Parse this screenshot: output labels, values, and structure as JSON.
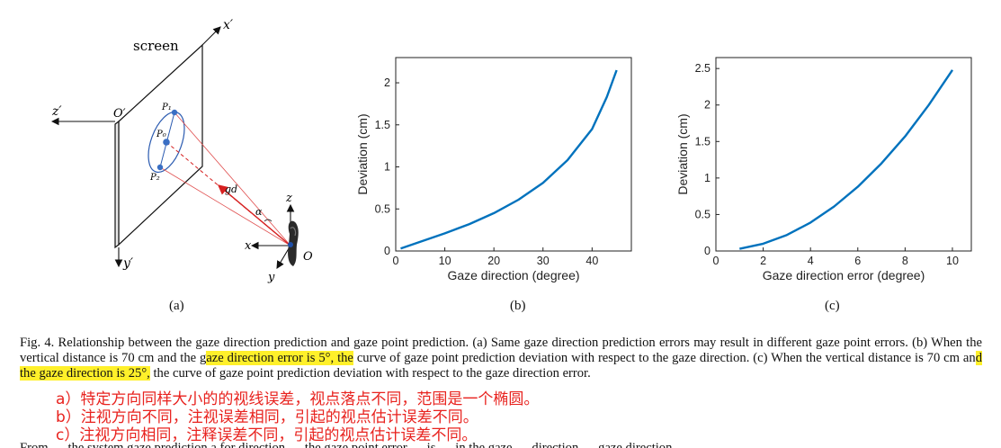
{
  "diagram": {
    "screen_label": "screen",
    "axes": {
      "x_prime": "x′",
      "y_prime": "y′",
      "z_prime": "z′",
      "o_prime": "O′",
      "x": "x",
      "y": "y",
      "z": "z",
      "o": "O"
    },
    "points": {
      "p1": "P₁",
      "p0": "P₀",
      "p2": "P₂"
    },
    "vector_label": "gd",
    "angle_label": "α",
    "sublabel": "(a)"
  },
  "chart_data": [
    {
      "type": "line",
      "xlabel": "Gaze direction (degree)",
      "ylabel": "Deviation (cm)",
      "xlim": [
        0,
        48
      ],
      "ylim": [
        0,
        2.3
      ],
      "xticks": [
        0,
        10,
        20,
        30,
        40
      ],
      "yticks": [
        0,
        0.5,
        1,
        1.5,
        2
      ],
      "series": [
        {
          "color": "#0072bd",
          "x": [
            1,
            5,
            10,
            15,
            20,
            25,
            30,
            35,
            40,
            43,
            45
          ],
          "y": [
            0.03,
            0.11,
            0.21,
            0.32,
            0.45,
            0.61,
            0.81,
            1.08,
            1.45,
            1.83,
            2.15
          ]
        }
      ],
      "grid": false,
      "sublabel": "(b)"
    },
    {
      "type": "line",
      "xlabel": "Gaze direction error (degree)",
      "ylabel": "Deviation (cm)",
      "xlim": [
        0,
        10.8
      ],
      "ylim": [
        0,
        2.65
      ],
      "xticks": [
        0,
        2,
        4,
        6,
        8,
        10
      ],
      "yticks": [
        0,
        0.5,
        1,
        1.5,
        2,
        2.5
      ],
      "series": [
        {
          "color": "#0072bd",
          "x": [
            1,
            2,
            3,
            4,
            5,
            6,
            7,
            8,
            9,
            10
          ],
          "y": [
            0.03,
            0.1,
            0.22,
            0.39,
            0.61,
            0.88,
            1.2,
            1.57,
            2.0,
            2.48
          ]
        }
      ],
      "grid": false,
      "sublabel": "(c)"
    }
  ],
  "caption": {
    "p1": "Fig. 4.   Relationship between the gaze direction prediction and gaze point prediction. (a) Same gaze direction prediction errors may result in different gaze point errors. (b) When the vertical distance is 70 cm and the g",
    "h1": "aze direction error is 5°, the",
    "p2": " curve of gaze point prediction deviation with respect to the gaze direction. (c) When the vertical distance is 70 cm an",
    "h2": "d the gaze direction is 25°,",
    "p3": " the curve of gaze point prediction deviation with respect to the gaze direction error."
  },
  "notes": [
    "a）特定方向同样大小的的视线误差，视点落点不同，范围是一个椭圆。",
    "b）注视方向不同，注视误差相同，引起的视点估计误差不同。",
    "c）注视方向相同，注释误差不同，引起的视点估计误差不同。"
  ],
  "cut_line": "From … the system gaze prediction a for direction … the gaze point error … is … in the gaze … direction … gaze direction"
}
